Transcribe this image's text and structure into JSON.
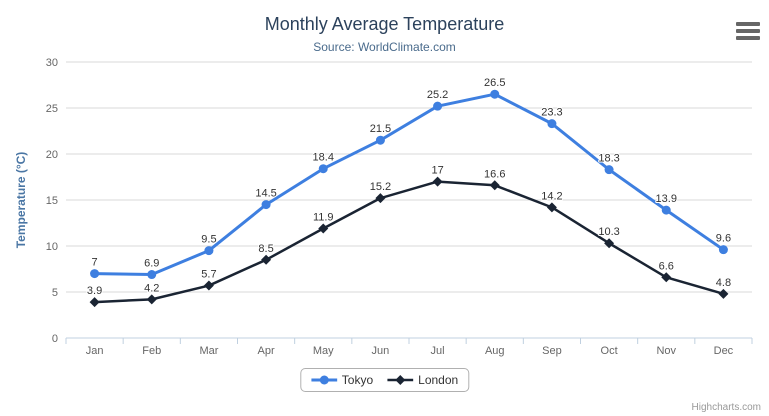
{
  "header": {
    "title": "Monthly Average Temperature",
    "subtitle": "Source: WorldClimate.com"
  },
  "chart_data": {
    "type": "line",
    "title": "Monthly Average Temperature",
    "subtitle": "Source: WorldClimate.com",
    "categories": [
      "Jan",
      "Feb",
      "Mar",
      "Apr",
      "May",
      "Jun",
      "Jul",
      "Aug",
      "Sep",
      "Oct",
      "Nov",
      "Dec"
    ],
    "series": [
      {
        "name": "Tokyo",
        "color": "#3e7fe0",
        "marker": "circle",
        "line_width": 3,
        "values": [
          7,
          6.9,
          9.5,
          14.5,
          18.4,
          21.5,
          25.2,
          26.5,
          23.3,
          18.3,
          13.9,
          9.6
        ]
      },
      {
        "name": "London",
        "color": "#1a2433",
        "marker": "diamond",
        "line_width": 2.5,
        "values": [
          3.9,
          4.2,
          5.7,
          8.5,
          11.9,
          15.2,
          17,
          16.6,
          14.2,
          10.3,
          6.6,
          4.8
        ]
      }
    ],
    "xlabel": "",
    "ylabel": "Temperature (°C)",
    "ylim": [
      0,
      30
    ],
    "yticks": [
      0,
      5,
      10,
      15,
      20,
      25,
      30
    ],
    "grid": true,
    "legend_position": "bottom-center",
    "data_labels": true
  },
  "credits": {
    "label": "Highcharts.com"
  },
  "colors": {
    "title": "#2c425c",
    "subtitle": "#4a6b8c",
    "axis_title": "#4a76a4",
    "axis_labels": "#666666",
    "grid": "#d8d8d8",
    "axis_line": "#c0d0e0",
    "data_label": "#333333",
    "legend_text": "#333333",
    "credits": "#999999",
    "menu_icon": "#666666"
  }
}
